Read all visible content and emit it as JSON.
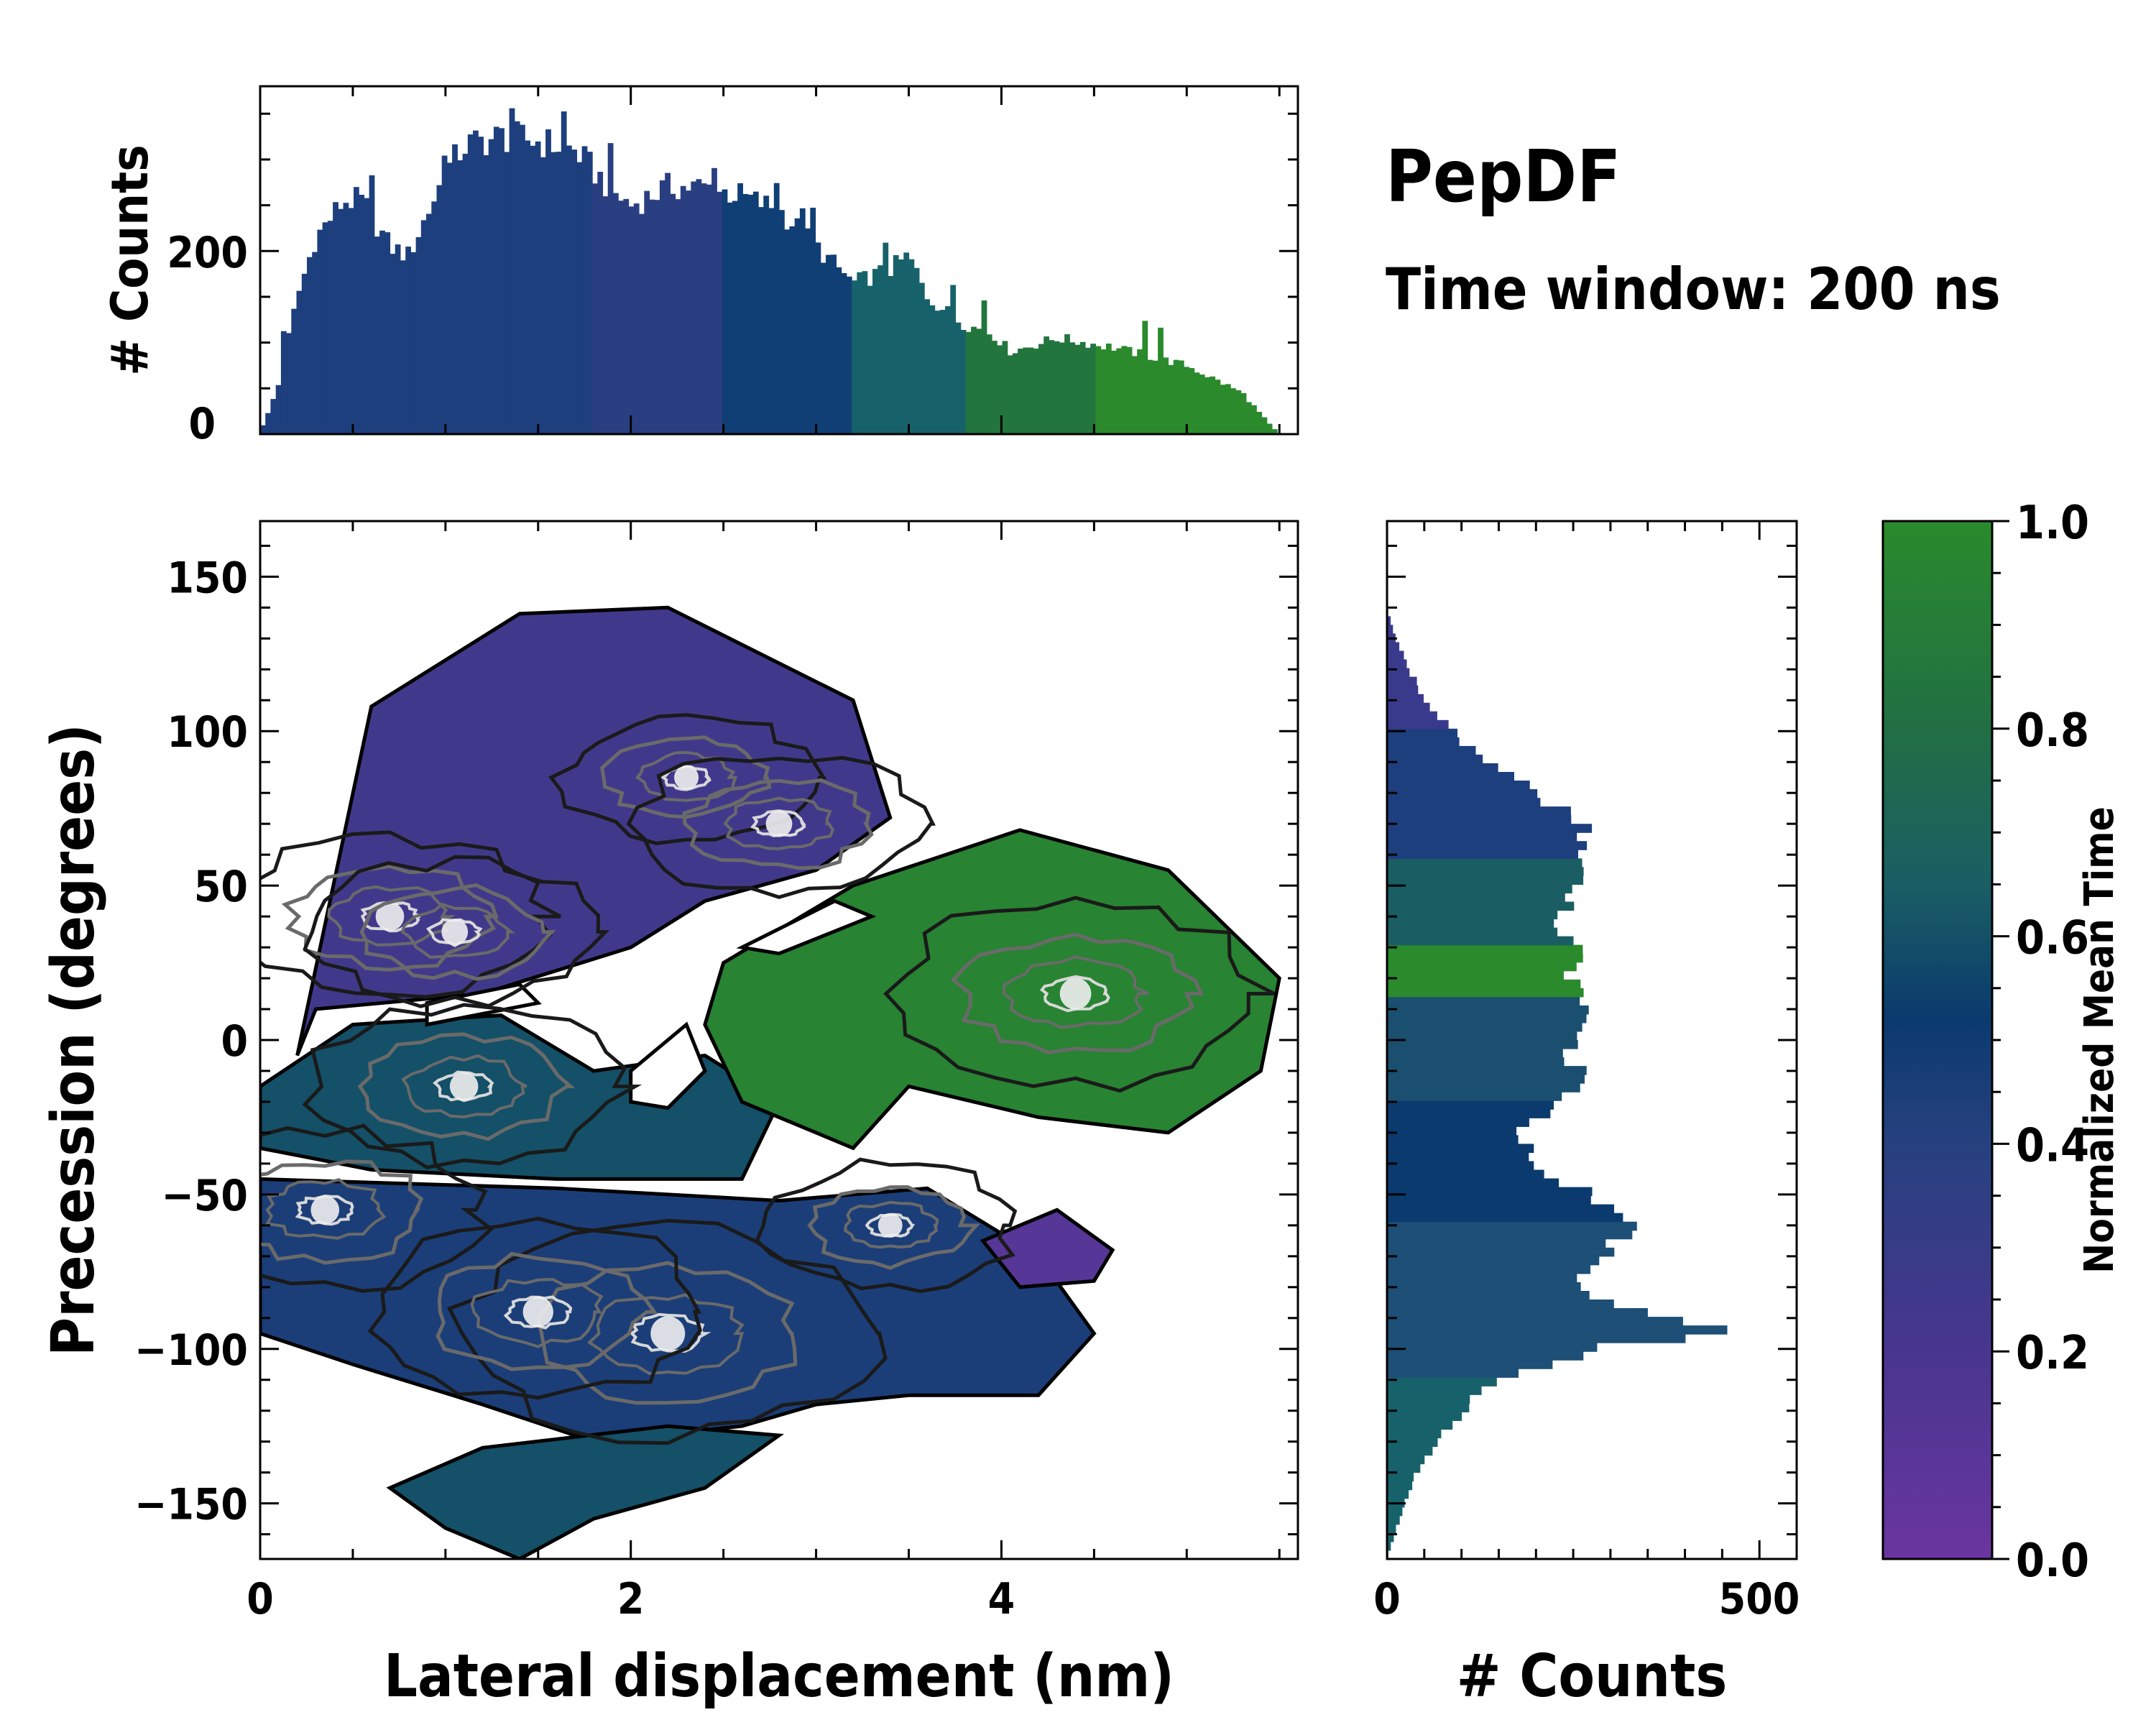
{
  "figure": {
    "title": "PepDF",
    "subtitle": "Time window: 200 ns"
  },
  "colors": {
    "purple": "#6a35a0",
    "blue": "#1d3f7e",
    "navy": "#0b3a6e",
    "teal": "#17626a",
    "green": "#2a8a2c",
    "contour_dark": "#1a1a1a",
    "contour_mid": "#6a6a6a",
    "contour_light": "#d8d8d8"
  },
  "chart_data": [
    {
      "id": "top-histogram",
      "type": "bar",
      "xlabel": "",
      "ylabel": "# Counts",
      "xlim": [
        0,
        5.6
      ],
      "ylim": [
        0,
        380
      ],
      "yticks": [
        0,
        200
      ],
      "bin_width": 0.028,
      "control_x": [
        0.02,
        0.1,
        0.2,
        0.3,
        0.45,
        0.55,
        0.7,
        0.8,
        1.0,
        1.1,
        1.3,
        1.5,
        1.7,
        1.9,
        2.0,
        2.2,
        2.4,
        2.6,
        2.8,
        3.0,
        3.2,
        3.4,
        3.5,
        3.6,
        3.8,
        3.95,
        4.05,
        4.3,
        4.6,
        5.0,
        5.3,
        5.45,
        5.5
      ],
      "control_y": [
        10,
        55,
        150,
        215,
        255,
        255,
        205,
        195,
        285,
        315,
        325,
        320,
        310,
        265,
        250,
        270,
        270,
        260,
        245,
        205,
        165,
        180,
        195,
        150,
        120,
        110,
        90,
        105,
        95,
        75,
        45,
        10,
        0
      ],
      "color_by_x": {
        "breaks": [
          0,
          1.8,
          2.5,
          3.2,
          3.8,
          4.5,
          5.5
        ],
        "colors": [
          "#1d3f7e",
          "#2a3f82",
          "#103f75",
          "#17626a",
          "#22753d",
          "#2a8a2c",
          "#2a8a2c"
        ]
      }
    },
    {
      "id": "joint-heatmap",
      "type": "heatmap",
      "xlabel": "Lateral displacement (nm)",
      "ylabel": "Precession (degrees)",
      "xlim": [
        0,
        5.6
      ],
      "ylim": [
        -168,
        168
      ],
      "xticks": [
        0,
        2,
        4
      ],
      "yticks": [
        -150,
        -100,
        -50,
        0,
        50,
        100,
        150
      ],
      "ytick_labels": [
        "−150",
        "−100",
        "−50",
        "0",
        "50",
        "100",
        "150"
      ],
      "colorbar_label": "Normalized Mean Time",
      "colorbar_range": [
        0.0,
        1.0
      ],
      "colorbar_ticks": [
        "0.0",
        "0.2",
        "0.4",
        "0.6",
        "0.8",
        "1.0"
      ],
      "regions": [
        {
          "name": "upper-left lobe",
          "mean_time": 0.25,
          "poly": [
            [
              0.2,
              -5
            ],
            [
              0.6,
              108
            ],
            [
              1.4,
              138
            ],
            [
              2.2,
              140
            ],
            [
              3.2,
              110
            ],
            [
              3.4,
              72
            ],
            [
              3.0,
              55
            ],
            [
              2.4,
              45
            ],
            [
              2.0,
              30
            ],
            [
              1.2,
              15
            ],
            [
              0.3,
              10
            ]
          ]
        },
        {
          "name": "left mid band",
          "mean_time": 0.6,
          "poly": [
            [
              0,
              -15
            ],
            [
              0.5,
              5
            ],
            [
              1.3,
              8
            ],
            [
              1.8,
              -10
            ],
            [
              2.4,
              -5
            ],
            [
              2.8,
              -20
            ],
            [
              2.6,
              -45
            ],
            [
              1.6,
              -45
            ],
            [
              0.6,
              -42
            ],
            [
              0,
              -35
            ]
          ]
        },
        {
          "name": "green right lobe",
          "mean_time": 0.95,
          "poly": [
            [
              2.5,
              25
            ],
            [
              3.2,
              50
            ],
            [
              4.1,
              68
            ],
            [
              4.9,
              55
            ],
            [
              5.5,
              20
            ],
            [
              5.4,
              -10
            ],
            [
              4.9,
              -30
            ],
            [
              4.2,
              -25
            ],
            [
              3.5,
              -15
            ],
            [
              3.2,
              -35
            ],
            [
              2.6,
              -20
            ],
            [
              2.4,
              5
            ]
          ]
        },
        {
          "name": "lower band",
          "mean_time": 0.45,
          "poly": [
            [
              0,
              -45
            ],
            [
              1.6,
              -48
            ],
            [
              2.8,
              -52
            ],
            [
              3.6,
              -48
            ],
            [
              4.2,
              -70
            ],
            [
              4.5,
              -95
            ],
            [
              4.2,
              -115
            ],
            [
              3.5,
              -115
            ],
            [
              3.0,
              -118
            ],
            [
              2.6,
              -125
            ],
            [
              1.8,
              -130
            ],
            [
              1.2,
              -118
            ],
            [
              0.5,
              -105
            ],
            [
              0,
              -95
            ]
          ]
        },
        {
          "name": "lower tail",
          "mean_time": 0.6,
          "poly": [
            [
              0.7,
              -145
            ],
            [
              1.2,
              -132
            ],
            [
              2.2,
              -125
            ],
            [
              2.8,
              -128
            ],
            [
              2.4,
              -145
            ],
            [
              1.8,
              -155
            ],
            [
              1.4,
              -168
            ],
            [
              1.0,
              -158
            ]
          ]
        },
        {
          "name": "purple right pocket",
          "mean_time": 0.12,
          "poly": [
            [
              3.9,
              -65
            ],
            [
              4.3,
              -55
            ],
            [
              4.6,
              -68
            ],
            [
              4.5,
              -78
            ],
            [
              4.1,
              -80
            ]
          ]
        }
      ],
      "holes": [
        {
          "poly": [
            [
              2.0,
              -10
            ],
            [
              2.3,
              5
            ],
            [
              2.4,
              -10
            ],
            [
              2.2,
              -22
            ],
            [
              2.0,
              -20
            ]
          ]
        },
        {
          "poly": [
            [
              0.9,
              5
            ],
            [
              1.5,
              12
            ],
            [
              1.4,
              18
            ],
            [
              0.9,
              12
            ]
          ]
        },
        {
          "poly": [
            [
              2.6,
              30
            ],
            [
              3.1,
              45
            ],
            [
              3.3,
              40
            ],
            [
              2.8,
              28
            ]
          ]
        }
      ],
      "density_peaks": [
        {
          "x": 0.7,
          "y": 40,
          "level": 0.7
        },
        {
          "x": 1.05,
          "y": 35,
          "level": 0.6
        },
        {
          "x": 2.3,
          "y": 85,
          "level": 0.5
        },
        {
          "x": 2.8,
          "y": 70,
          "level": 0.6
        },
        {
          "x": 4.4,
          "y": 15,
          "level": 0.85
        },
        {
          "x": 1.1,
          "y": -15,
          "level": 0.7
        },
        {
          "x": 0.35,
          "y": -55,
          "level": 0.7
        },
        {
          "x": 2.2,
          "y": -95,
          "level": 1.0
        },
        {
          "x": 1.5,
          "y": -88,
          "level": 0.8
        },
        {
          "x": 3.4,
          "y": -60,
          "level": 0.5
        }
      ]
    },
    {
      "id": "right-histogram",
      "type": "bar",
      "orientation": "horizontal",
      "xlabel": "# Counts",
      "xlim": [
        0,
        550
      ],
      "xticks": [
        0,
        500
      ],
      "ylim": [
        -168,
        168
      ],
      "bin_width": 2.8,
      "control_y": [
        -168,
        -160,
        -150,
        -140,
        -130,
        -120,
        -110,
        -100,
        -95,
        -90,
        -80,
        -70,
        -60,
        -50,
        -40,
        -30,
        -20,
        -10,
        0,
        10,
        20,
        30,
        40,
        50,
        60,
        70,
        80,
        90,
        100,
        110,
        120,
        130,
        140
      ],
      "control_x": [
        0,
        10,
        25,
        40,
        70,
        100,
        150,
        280,
        460,
        380,
        260,
        290,
        350,
        270,
        190,
        180,
        240,
        260,
        240,
        270,
        250,
        250,
        230,
        250,
        250,
        270,
        200,
        130,
        90,
        50,
        30,
        12,
        0
      ],
      "color_by_y": {
        "breaks": [
          -168,
          -110,
          -60,
          -20,
          15,
          30,
          60,
          100,
          140
        ],
        "colors": [
          "#17626a",
          "#1d4f77",
          "#0b3a6e",
          "#1b4f70",
          "#2a8a2c",
          "#1a5e64",
          "#1d3f7e",
          "#3a3a8c",
          "#6a35a0"
        ]
      }
    }
  ]
}
